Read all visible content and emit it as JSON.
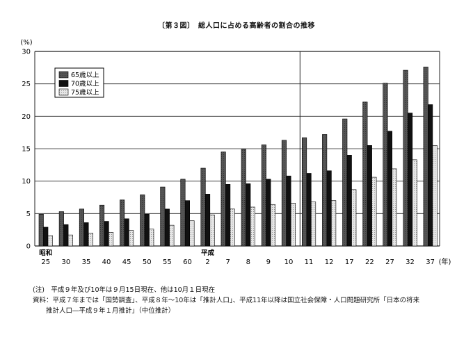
{
  "chart_data": {
    "type": "bar",
    "title": "〔第３図〕　総人口に占める高齢者の割合の推移",
    "ylabel": "(%)",
    "xlabel": "",
    "ylim": [
      0,
      30
    ],
    "yticks": [
      0,
      5,
      10,
      15,
      20,
      25,
      30
    ],
    "grid": true,
    "legend_position": "top-left",
    "categories": [
      "25",
      "30",
      "35",
      "40",
      "45",
      "50",
      "55",
      "60",
      "2",
      "7",
      "8",
      "9",
      "10",
      "11",
      "12",
      "17",
      "22",
      "27",
      "32",
      "37"
    ],
    "category_prefix": [
      {
        "index": 0,
        "label": "昭和"
      },
      {
        "index": 8,
        "label": "平成"
      }
    ],
    "x_unit": "(年)",
    "series": [
      {
        "name": "65歳以上",
        "color": "#555555",
        "values": [
          4.9,
          5.3,
          5.7,
          6.3,
          7.1,
          7.9,
          9.1,
          10.3,
          12.0,
          14.5,
          14.9,
          15.6,
          16.3,
          16.7,
          17.2,
          19.6,
          22.2,
          25.1,
          27.1,
          27.6
        ]
      },
      {
        "name": "70歳以上",
        "color": "#111111",
        "values": [
          2.9,
          3.3,
          3.6,
          3.8,
          4.2,
          4.9,
          5.7,
          7.0,
          8.0,
          9.5,
          9.6,
          10.3,
          10.8,
          11.2,
          11.6,
          14.0,
          15.5,
          17.7,
          20.5,
          21.8
        ]
      },
      {
        "name": "75歳以上",
        "color": "#d4d4d4",
        "values": [
          1.6,
          1.7,
          2.0,
          2.1,
          2.4,
          2.6,
          3.2,
          3.9,
          4.8,
          5.7,
          6.0,
          6.4,
          6.6,
          6.8,
          7.0,
          8.7,
          10.6,
          11.9,
          13.3,
          15.5
        ]
      }
    ]
  },
  "notes": {
    "line1": "(注)　平成９年及び10年は９月15日現在、他は10月１日現在",
    "line2": "資料：平成７年までは「国勢調査」、平成８年～10年は「推計人口」、平成11年以降は国立社会保障・人口問題研究所「日本の将来",
    "line3": "推計人口―平成９年１月推計」（中位推計）"
  }
}
